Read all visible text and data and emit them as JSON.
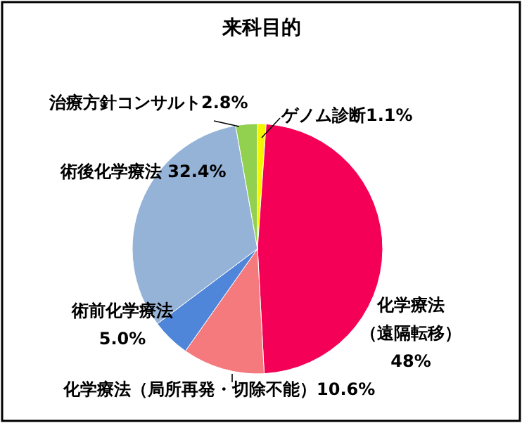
{
  "chart_data": {
    "type": "pie",
    "title": "来科目的",
    "categories": [
      "ゲノム診断",
      "化学療法（遠隔転移）",
      "化学療法（局所再発・切除不能）",
      "術前化学療法",
      "術後化学療法",
      "治療方針コンサルト"
    ],
    "values": [
      1.1,
      48,
      10.6,
      5.0,
      32.4,
      2.8
    ],
    "value_labels": [
      "1.1%",
      "48%",
      "10.6%",
      "5.0%",
      "32.4%",
      "2.8%"
    ],
    "colors": [
      "#f5f500",
      "#f50057",
      "#f47a7e",
      "#4f86d9",
      "#95b3d7",
      "#92d050"
    ]
  }
}
